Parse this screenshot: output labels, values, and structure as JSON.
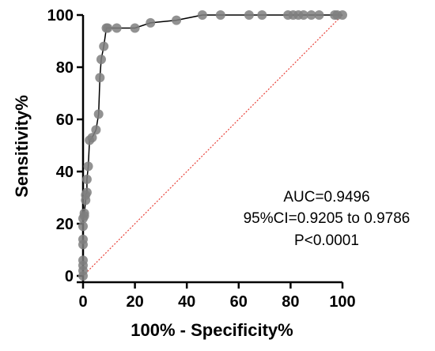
{
  "chart_data": {
    "type": "line",
    "title": "",
    "xlabel": "100% - Specificity%",
    "ylabel": "Sensitivity%",
    "xlim": [
      0,
      100
    ],
    "ylim": [
      0,
      100
    ],
    "x_ticks": [
      "0",
      "20",
      "40",
      "60",
      "80",
      "100"
    ],
    "y_ticks": [
      "0",
      "20",
      "40",
      "60",
      "80",
      "100"
    ],
    "grid": false,
    "legend": "none",
    "annotations": [
      "AUC=0.9496",
      "95%CI=0.9205 to 0.9786",
      "P<0.0001"
    ],
    "series": [
      {
        "x": [
          0,
          0,
          0,
          0,
          0,
          0,
          0,
          0,
          0.5,
          0.5,
          1,
          1,
          1.5,
          1.5,
          2,
          2.5,
          3.5,
          5,
          6,
          6.5,
          7,
          8,
          9,
          9.5,
          13,
          20,
          26,
          36,
          46,
          53,
          64,
          69,
          79,
          81,
          83,
          85,
          88,
          91,
          97,
          98,
          100
        ],
        "y": [
          0,
          2,
          4,
          6,
          12,
          14,
          19,
          22,
          23,
          24,
          29,
          31,
          32,
          37,
          42,
          52,
          53,
          56,
          62,
          76,
          83,
          88,
          95,
          95,
          95,
          95,
          97,
          98,
          100,
          100,
          100,
          100,
          100,
          100,
          100,
          100,
          100,
          100,
          100,
          100,
          100
        ],
        "color": "#000000",
        "marker_color": "#7f7f7f"
      },
      {
        "x": [
          0,
          100
        ],
        "y": [
          0,
          100
        ],
        "style": "dotted",
        "color": "#e8423a"
      }
    ]
  }
}
